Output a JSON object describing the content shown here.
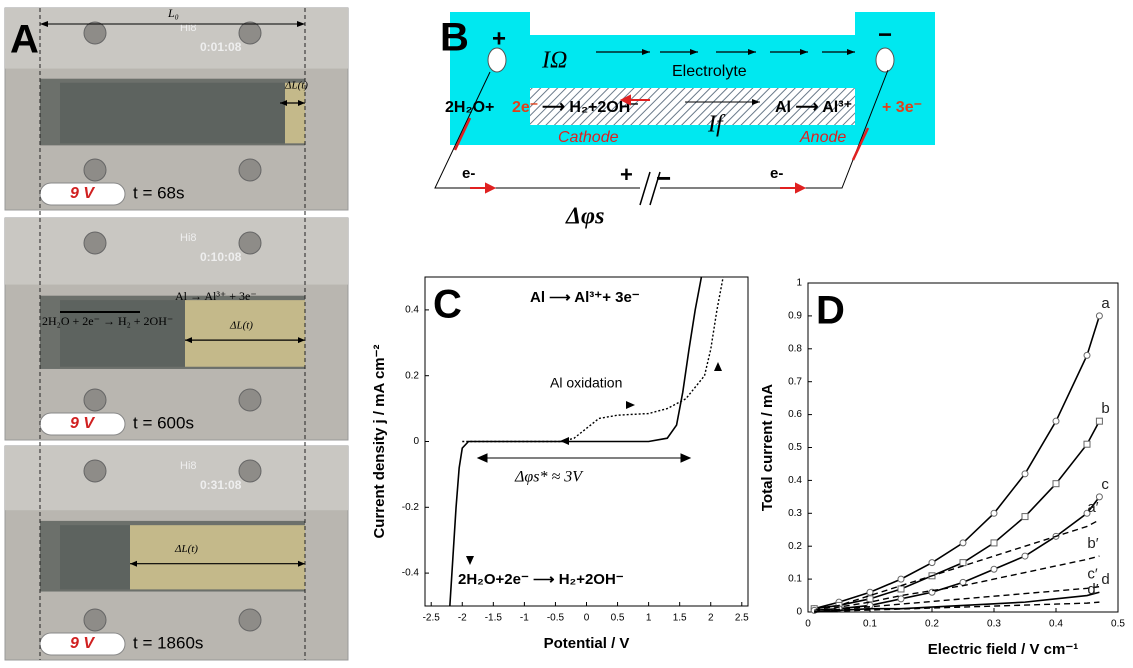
{
  "panel_a": {
    "label": "A",
    "length_label": "L₀",
    "frames": [
      {
        "camera": "Hi8",
        "clock": "0:01:08",
        "delta": "ΔL(t)",
        "voltage": "9 V",
        "time": "t = 68s"
      },
      {
        "camera": "Hi8",
        "clock": "0:10:08",
        "delta": "ΔL(t)",
        "voltage": "9 V",
        "time": "t = 600s",
        "reactions": [
          "Al → Al³⁺ + 3e⁻",
          "2H₂O + 2e⁻ → H₂ + 2OH⁻"
        ]
      },
      {
        "camera": "Hi8",
        "clock": "0:31:08",
        "delta": "ΔL(t)",
        "voltage": "9 V",
        "time": "t = 1860s"
      }
    ]
  },
  "panel_b": {
    "label": "B",
    "plus": "+",
    "minus": "−",
    "ohmic_current": "IΩ",
    "electrolyte": "Electrolyte",
    "cathode_reaction": [
      "2H₂O+",
      "2e⁻",
      "⟶ H₂+2OH⁻"
    ],
    "faradaic_current": "If",
    "anode_reaction": [
      "Al ⟶ Al³⁺",
      "+ 3e⁻"
    ],
    "cathode": "Cathode",
    "anode": "Anode",
    "electron": [
      "e-",
      "e-"
    ],
    "battery": [
      "+",
      "−"
    ],
    "potential": "Δφs"
  },
  "chart_data": [
    {
      "type": "line",
      "label": "C",
      "x_label": "Potential / V",
      "y_label": "Current density j / mA cm⁻²",
      "annotations": [
        "Al ⟶ Al³⁺+ 3e⁻",
        "Al oxidation",
        "Δφs* ≈ 3V",
        "2H₂O+2e⁻ ⟶ H₂+2OH⁻"
      ],
      "xlim": [
        -2.6,
        2.6
      ],
      "ylim": [
        -0.5,
        0.5
      ],
      "xticks": [
        -2.5,
        -2,
        -1.5,
        -1,
        -0.5,
        0,
        0.5,
        1,
        1.5,
        2,
        2.5
      ],
      "yticks": [
        -0.4,
        -0.2,
        0,
        0.2,
        0.4
      ],
      "series": [
        {
          "color": "#000000",
          "dash": false,
          "x": [
            -2.2,
            -2.15,
            -2.1,
            -2.05,
            -2.0,
            -1.9,
            -1.7,
            0,
            1.0,
            1.3,
            1.45,
            1.55,
            1.65,
            1.75,
            1.85
          ],
          "values": [
            -0.5,
            -0.35,
            -0.2,
            -0.08,
            -0.02,
            0,
            0,
            0,
            0,
            0.01,
            0.05,
            0.15,
            0.28,
            0.4,
            0.5
          ]
        },
        {
          "color": "#000000",
          "dash": true,
          "x": [
            -2.0,
            -0.4,
            -0.2,
            0,
            0.2,
            0.5,
            1.0,
            1.3,
            1.6,
            1.9,
            2.0,
            2.1,
            2.2
          ],
          "values": [
            0,
            0,
            0.01,
            0.04,
            0.07,
            0.08,
            0.085,
            0.1,
            0.13,
            0.2,
            0.28,
            0.4,
            0.5
          ]
        }
      ]
    },
    {
      "type": "line",
      "label": "D",
      "x_label": "Electric field / V cm⁻¹",
      "y_label": "Total current / mA",
      "xlim": [
        0,
        0.5
      ],
      "ylim": [
        0,
        1
      ],
      "xticks": [
        0,
        0.1,
        0.2,
        0.3,
        0.4,
        0.5
      ],
      "yticks": [
        0,
        0.1,
        0.2,
        0.3,
        0.4,
        0.5,
        0.6,
        0.7,
        0.8,
        0.9,
        1
      ],
      "x": [
        0.01,
        0.05,
        0.1,
        0.15,
        0.2,
        0.25,
        0.3,
        0.35,
        0.4,
        0.45,
        0.47
      ],
      "series": [
        {
          "name": "a",
          "color": "#000000",
          "dash": false,
          "marker": "circle",
          "values": [
            0.01,
            0.03,
            0.06,
            0.1,
            0.15,
            0.21,
            0.3,
            0.42,
            0.58,
            0.78,
            0.9
          ]
        },
        {
          "name": "b",
          "color": "#000000",
          "dash": false,
          "marker": "square",
          "values": [
            0.01,
            0.02,
            0.04,
            0.07,
            0.11,
            0.15,
            0.21,
            0.29,
            0.39,
            0.51,
            0.58
          ]
        },
        {
          "name": "c",
          "color": "#000000",
          "dash": false,
          "marker": "circle",
          "values": [
            0.005,
            0.01,
            0.02,
            0.04,
            0.06,
            0.09,
            0.13,
            0.17,
            0.23,
            0.3,
            0.35
          ]
        },
        {
          "name": "d",
          "color": "#000000",
          "dash": false,
          "values": [
            0,
            0.005,
            0.01,
            0.01,
            0.015,
            0.02,
            0.025,
            0.03,
            0.04,
            0.05,
            0.06
          ]
        },
        {
          "name": "a′",
          "color": "#000000",
          "dash": true,
          "values": [
            0.005,
            0.02,
            0.05,
            0.08,
            0.11,
            0.14,
            0.17,
            0.2,
            0.23,
            0.26,
            0.28
          ]
        },
        {
          "name": "b′",
          "color": "#000000",
          "dash": true,
          "values": [
            0,
            0.015,
            0.03,
            0.05,
            0.065,
            0.08,
            0.1,
            0.12,
            0.14,
            0.16,
            0.17
          ]
        },
        {
          "name": "c′",
          "color": "#000000",
          "dash": true,
          "values": [
            0,
            0.008,
            0.016,
            0.024,
            0.032,
            0.04,
            0.048,
            0.056,
            0.064,
            0.072,
            0.077
          ]
        },
        {
          "name": "d′",
          "color": "#000000",
          "dash": true,
          "values": [
            0,
            0.003,
            0.006,
            0.009,
            0.012,
            0.015,
            0.018,
            0.021,
            0.024,
            0.027,
            0.03
          ]
        }
      ]
    }
  ]
}
